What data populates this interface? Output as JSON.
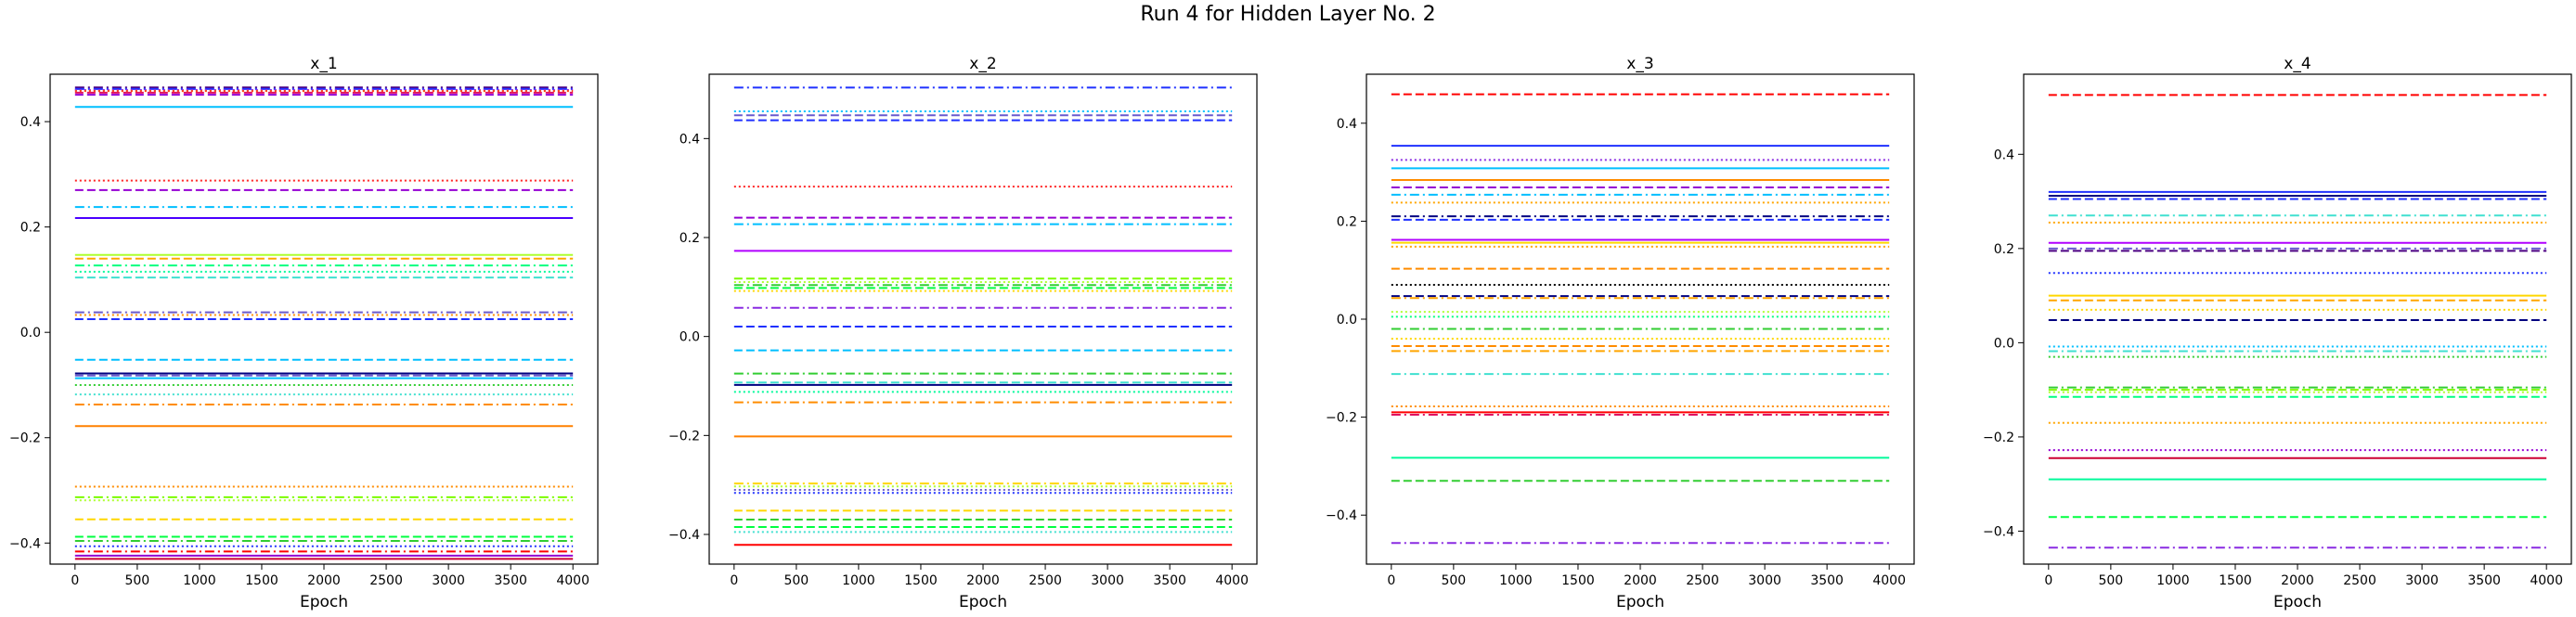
{
  "figure": {
    "suptitle": "Run 4 for Hidden Layer No. 2"
  },
  "chart_data": [
    {
      "type": "line",
      "title": "x_1",
      "xlabel": "Epoch",
      "ylabel": "",
      "xlim": [
        -200,
        4200
      ],
      "ylim": [
        -0.44,
        0.49
      ],
      "xticks": [
        0,
        500,
        1000,
        1500,
        2000,
        2500,
        3000,
        3500,
        4000
      ],
      "yticks": [
        -0.4,
        -0.2,
        0.0,
        0.2,
        0.4
      ],
      "ytick_labels": [
        "−0.4",
        "−0.2",
        "0.0",
        "0.2",
        "0.4"
      ],
      "x": [
        0,
        4000
      ],
      "series": [
        {
          "value": 0.465,
          "color": "#4b0082",
          "style": "dashdot"
        },
        {
          "value": 0.462,
          "color": "#1f30ff",
          "style": "dashdot"
        },
        {
          "value": 0.46,
          "color": "#8a2be2",
          "style": "dotted"
        },
        {
          "value": 0.458,
          "color": "#ff4500",
          "style": "dotted"
        },
        {
          "value": 0.455,
          "color": "#e0115f",
          "style": "dashed"
        },
        {
          "value": 0.451,
          "color": "#9400d3",
          "style": "dashed"
        },
        {
          "value": 0.428,
          "color": "#00bfff",
          "style": "solid"
        },
        {
          "value": 0.288,
          "color": "#ff2020",
          "style": "dotted"
        },
        {
          "value": 0.27,
          "color": "#9400d3",
          "style": "dashed"
        },
        {
          "value": 0.238,
          "color": "#00bfff",
          "style": "dashdot"
        },
        {
          "value": 0.217,
          "color": "#4b00ff",
          "style": "solid"
        },
        {
          "value": 0.147,
          "color": "#adff2f",
          "style": "solid"
        },
        {
          "value": 0.14,
          "color": "#ffa500",
          "style": "dashed"
        },
        {
          "value": 0.127,
          "color": "#00ff7f",
          "style": "dashdot"
        },
        {
          "value": 0.115,
          "color": "#00fa9a",
          "style": "dotted"
        },
        {
          "value": 0.104,
          "color": "#40e0d0",
          "style": "dashed"
        },
        {
          "value": 0.038,
          "color": "#6a5acd",
          "style": "dashdot"
        },
        {
          "value": 0.033,
          "color": "#ff8c00",
          "style": "dotted"
        },
        {
          "value": 0.025,
          "color": "#1f30ff",
          "style": "dashed"
        },
        {
          "value": -0.052,
          "color": "#00bfff",
          "style": "dashed"
        },
        {
          "value": -0.078,
          "color": "#000080",
          "style": "solid"
        },
        {
          "value": -0.082,
          "color": "#6a5acd",
          "style": "dashed"
        },
        {
          "value": -0.087,
          "color": "#00bfff",
          "style": "solid"
        },
        {
          "value": -0.1,
          "color": "#32cd32",
          "style": "dotted"
        },
        {
          "value": -0.118,
          "color": "#40e0d0",
          "style": "dotted"
        },
        {
          "value": -0.137,
          "color": "#ff8c00",
          "style": "dashdot"
        },
        {
          "value": -0.178,
          "color": "#ff8000",
          "style": "solid"
        },
        {
          "value": -0.293,
          "color": "#ff8c00",
          "style": "dotted"
        },
        {
          "value": -0.313,
          "color": "#7cfc00",
          "style": "dashdot"
        },
        {
          "value": -0.319,
          "color": "#adff2f",
          "style": "dotted"
        },
        {
          "value": -0.355,
          "color": "#ffd700",
          "style": "dashed"
        },
        {
          "value": -0.388,
          "color": "#00ff40",
          "style": "dashed"
        },
        {
          "value": -0.396,
          "color": "#32cd32",
          "style": "dashdot"
        },
        {
          "value": -0.406,
          "color": "#1f30ff",
          "style": "dotted"
        },
        {
          "value": -0.416,
          "color": "#ff0000",
          "style": "dashdot"
        },
        {
          "value": -0.424,
          "color": "#9400d3",
          "style": "solid"
        },
        {
          "value": -0.43,
          "color": "#cc0033",
          "style": "solid"
        }
      ]
    },
    {
      "type": "line",
      "title": "x_2",
      "xlabel": "Epoch",
      "ylabel": "",
      "xlim": [
        -200,
        4200
      ],
      "ylim": [
        -0.46,
        0.53
      ],
      "xticks": [
        0,
        500,
        1000,
        1500,
        2000,
        2500,
        3000,
        3500,
        4000
      ],
      "yticks": [
        -0.4,
        -0.2,
        0.0,
        0.2,
        0.4
      ],
      "ytick_labels": [
        "−0.4",
        "−0.2",
        "0.0",
        "0.2",
        "0.4"
      ],
      "x": [
        0,
        4000
      ],
      "series": [
        {
          "value": 0.503,
          "color": "#1f30ff",
          "style": "dashdot"
        },
        {
          "value": 0.455,
          "color": "#00bfff",
          "style": "dotted"
        },
        {
          "value": 0.447,
          "color": "#6a5acd",
          "style": "dashed"
        },
        {
          "value": 0.437,
          "color": "#1f30ff",
          "style": "dashed"
        },
        {
          "value": 0.303,
          "color": "#ff2020",
          "style": "dotted"
        },
        {
          "value": 0.24,
          "color": "#9400d3",
          "style": "dashed"
        },
        {
          "value": 0.227,
          "color": "#00bfff",
          "style": "dashdot"
        },
        {
          "value": 0.173,
          "color": "#b000ff",
          "style": "solid"
        },
        {
          "value": 0.117,
          "color": "#7cfc00",
          "style": "dashed"
        },
        {
          "value": 0.11,
          "color": "#adff2f",
          "style": "dotted"
        },
        {
          "value": 0.104,
          "color": "#32cd32",
          "style": "dashdot"
        },
        {
          "value": 0.098,
          "color": "#00ff40",
          "style": "dashed"
        },
        {
          "value": 0.092,
          "color": "#ffd700",
          "style": "dotted"
        },
        {
          "value": 0.058,
          "color": "#8a2be2",
          "style": "dashdot"
        },
        {
          "value": 0.02,
          "color": "#1f30ff",
          "style": "dashed"
        },
        {
          "value": -0.028,
          "color": "#00bfff",
          "style": "dashed"
        },
        {
          "value": -0.075,
          "color": "#32cd32",
          "style": "dashdot"
        },
        {
          "value": -0.093,
          "color": "#40e0d0",
          "style": "dashed"
        },
        {
          "value": -0.098,
          "color": "#000080",
          "style": "solid"
        },
        {
          "value": -0.112,
          "color": "#00fa9a",
          "style": "dotted"
        },
        {
          "value": -0.133,
          "color": "#ff8c00",
          "style": "dashdot"
        },
        {
          "value": -0.202,
          "color": "#ff8000",
          "style": "solid"
        },
        {
          "value": -0.297,
          "color": "#ffd700",
          "style": "dashdot"
        },
        {
          "value": -0.303,
          "color": "#adff2f",
          "style": "dotted"
        },
        {
          "value": -0.31,
          "color": "#6a5acd",
          "style": "dotted"
        },
        {
          "value": -0.316,
          "color": "#1f30ff",
          "style": "dotted"
        },
        {
          "value": -0.352,
          "color": "#ffd700",
          "style": "dashed"
        },
        {
          "value": -0.37,
          "color": "#32cd32",
          "style": "dashed"
        },
        {
          "value": -0.385,
          "color": "#00ff40",
          "style": "dashed"
        },
        {
          "value": -0.395,
          "color": "#40e0d0",
          "style": "dotted"
        },
        {
          "value": -0.421,
          "color": "#ff0000",
          "style": "solid"
        }
      ]
    },
    {
      "type": "line",
      "title": "x_3",
      "xlabel": "Epoch",
      "ylabel": "",
      "xlim": [
        -200,
        4200
      ],
      "ylim": [
        -0.5,
        0.5
      ],
      "xticks": [
        0,
        500,
        1000,
        1500,
        2000,
        2500,
        3000,
        3500,
        4000
      ],
      "yticks": [
        -0.4,
        -0.2,
        0.0,
        0.2,
        0.4
      ],
      "ytick_labels": [
        "−0.4",
        "−0.2",
        "0.0",
        "0.2",
        "0.4"
      ],
      "x": [
        0,
        4000
      ],
      "series": [
        {
          "value": 0.459,
          "color": "#ff0000",
          "style": "dashed"
        },
        {
          "value": 0.354,
          "color": "#1f30ff",
          "style": "solid"
        },
        {
          "value": 0.325,
          "color": "#8a2be2",
          "style": "dotted"
        },
        {
          "value": 0.308,
          "color": "#00bfff",
          "style": "solid"
        },
        {
          "value": 0.284,
          "color": "#ff8c00",
          "style": "solid"
        },
        {
          "value": 0.269,
          "color": "#9400d3",
          "style": "dashed"
        },
        {
          "value": 0.254,
          "color": "#00bfff",
          "style": "dashdot"
        },
        {
          "value": 0.238,
          "color": "#ffa500",
          "style": "dotted"
        },
        {
          "value": 0.21,
          "color": "#000080",
          "style": "dashdot"
        },
        {
          "value": 0.203,
          "color": "#1f30ff",
          "style": "dashed"
        },
        {
          "value": 0.162,
          "color": "#b000ff",
          "style": "solid"
        },
        {
          "value": 0.156,
          "color": "#ffd700",
          "style": "solid"
        },
        {
          "value": 0.148,
          "color": "#ffa500",
          "style": "dotted"
        },
        {
          "value": 0.103,
          "color": "#ff8c00",
          "style": "dashed"
        },
        {
          "value": 0.07,
          "color": "#000000",
          "style": "dotted"
        },
        {
          "value": 0.047,
          "color": "#000080",
          "style": "dashed"
        },
        {
          "value": 0.043,
          "color": "#ffa500",
          "style": "dashdot"
        },
        {
          "value": 0.015,
          "color": "#adff2f",
          "style": "dotted"
        },
        {
          "value": 0.005,
          "color": "#00ff7f",
          "style": "dotted"
        },
        {
          "value": -0.02,
          "color": "#32cd32",
          "style": "dashdot"
        },
        {
          "value": -0.04,
          "color": "#ffd700",
          "style": "dotted"
        },
        {
          "value": -0.055,
          "color": "#ff8c00",
          "style": "dashed"
        },
        {
          "value": -0.065,
          "color": "#ffa500",
          "style": "dashdot"
        },
        {
          "value": -0.112,
          "color": "#40e0d0",
          "style": "dashdot"
        },
        {
          "value": -0.178,
          "color": "#ff8c00",
          "style": "dotted"
        },
        {
          "value": -0.19,
          "color": "#ff0000",
          "style": "solid"
        },
        {
          "value": -0.195,
          "color": "#e0115f",
          "style": "dashdot"
        },
        {
          "value": -0.283,
          "color": "#00fa9a",
          "style": "solid"
        },
        {
          "value": -0.33,
          "color": "#32cd32",
          "style": "dashed"
        },
        {
          "value": -0.457,
          "color": "#8a2be2",
          "style": "dashdot"
        }
      ]
    },
    {
      "type": "line",
      "title": "x_4",
      "xlabel": "Epoch",
      "ylabel": "",
      "xlim": [
        -200,
        4200
      ],
      "ylim": [
        -0.47,
        0.57
      ],
      "xticks": [
        0,
        500,
        1000,
        1500,
        2000,
        2500,
        3000,
        3500,
        4000
      ],
      "yticks": [
        -0.4,
        -0.2,
        0.0,
        0.2,
        0.4
      ],
      "ytick_labels": [
        "−0.4",
        "−0.2",
        "0.0",
        "0.2",
        "0.4"
      ],
      "x": [
        0,
        4000
      ],
      "series": [
        {
          "value": 0.526,
          "color": "#ff0000",
          "style": "dashed"
        },
        {
          "value": 0.32,
          "color": "#1f30ff",
          "style": "solid"
        },
        {
          "value": 0.312,
          "color": "#000080",
          "style": "solid"
        },
        {
          "value": 0.305,
          "color": "#1f30ff",
          "style": "dashed"
        },
        {
          "value": 0.27,
          "color": "#40e0d0",
          "style": "dashdot"
        },
        {
          "value": 0.255,
          "color": "#ffa500",
          "style": "dotted"
        },
        {
          "value": 0.212,
          "color": "#b000ff",
          "style": "solid"
        },
        {
          "value": 0.2,
          "color": "#6a5acd",
          "style": "dashdot"
        },
        {
          "value": 0.195,
          "color": "#4b0082",
          "style": "dashed"
        },
        {
          "value": 0.148,
          "color": "#1f30ff",
          "style": "dotted"
        },
        {
          "value": 0.1,
          "color": "#ffd700",
          "style": "solid"
        },
        {
          "value": 0.09,
          "color": "#ffa500",
          "style": "dashed"
        },
        {
          "value": 0.07,
          "color": "#ffd700",
          "style": "dotted"
        },
        {
          "value": 0.048,
          "color": "#000080",
          "style": "dashed"
        },
        {
          "value": -0.008,
          "color": "#00bfff",
          "style": "dotted"
        },
        {
          "value": -0.018,
          "color": "#40e0d0",
          "style": "dashdot"
        },
        {
          "value": -0.03,
          "color": "#32cd32",
          "style": "dotted"
        },
        {
          "value": -0.095,
          "color": "#32cd32",
          "style": "dashdot"
        },
        {
          "value": -0.1,
          "color": "#7cfc00",
          "style": "dashed"
        },
        {
          "value": -0.105,
          "color": "#adff2f",
          "style": "dotted"
        },
        {
          "value": -0.115,
          "color": "#00ff7f",
          "style": "dashed"
        },
        {
          "value": -0.17,
          "color": "#ffa500",
          "style": "dotted"
        },
        {
          "value": -0.228,
          "color": "#9400d3",
          "style": "dotted"
        },
        {
          "value": -0.245,
          "color": "#cc0033",
          "style": "solid"
        },
        {
          "value": -0.29,
          "color": "#00fa9a",
          "style": "solid"
        },
        {
          "value": -0.37,
          "color": "#00ff40",
          "style": "dashed"
        },
        {
          "value": -0.435,
          "color": "#8a2be2",
          "style": "dashdot"
        }
      ]
    }
  ]
}
